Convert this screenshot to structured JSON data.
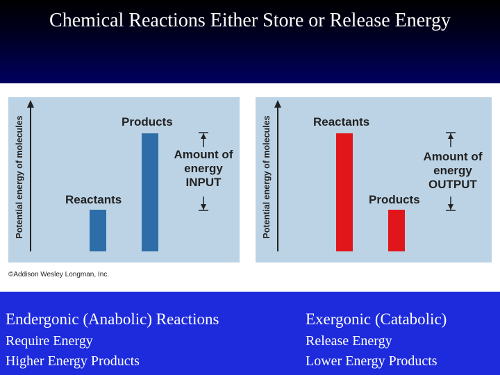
{
  "slide": {
    "title": "Chemical Reactions Either Store or Release Energy",
    "copyright": "©Addison Wesley Longman, Inc."
  },
  "left_diagram": {
    "y_axis_label": "Potential energy of molecules",
    "reactants_label": "Reactants",
    "products_label": "Products",
    "energy_note": [
      "Amount of",
      "energy",
      "INPUT"
    ],
    "bar_color": "#2e6ea8"
  },
  "right_diagram": {
    "y_axis_label": "Potential energy of molecules",
    "reactants_label": "Reactants",
    "products_label": "Products",
    "energy_note": [
      "Amount of",
      "energy",
      "OUTPUT"
    ],
    "bar_color": "#e0161b"
  },
  "footer": {
    "left": {
      "heading": "Endergonic (Anabolic) Reactions",
      "line1": "Require Energy",
      "line2": "Higher Energy Products"
    },
    "right": {
      "heading": "Exergonic (Catabolic)",
      "line1": "Release Energy",
      "line2": "Lower Energy Products"
    }
  },
  "colors": {
    "panel_bg": "#bcd3e5",
    "footer_bg": "#1d2bdc"
  }
}
